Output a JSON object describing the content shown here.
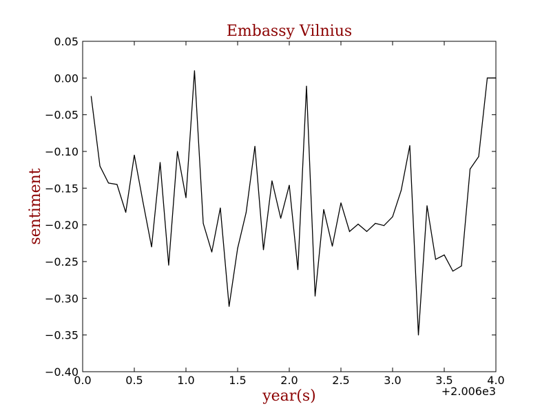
{
  "chart_data": {
    "type": "line",
    "title": "Embassy Vilnius",
    "xlabel": "year(s)",
    "ylabel": "sentiment",
    "x_offset_label": "+2.006e3",
    "xlim": [
      0.0,
      4.0
    ],
    "ylim": [
      -0.4,
      0.05
    ],
    "xticks": [
      "0.0",
      "0.5",
      "1.0",
      "1.5",
      "2.0",
      "2.5",
      "3.0",
      "3.5",
      "4.0"
    ],
    "yticks": [
      "0.05",
      "0.00",
      "−0.05",
      "−0.10",
      "−0.15",
      "−0.20",
      "−0.25",
      "−0.30",
      "−0.35",
      "−0.40"
    ],
    "grid": false,
    "legend": "none",
    "colors": {
      "label": "#8b0000",
      "line": "#000000",
      "axes": "#000000"
    },
    "series": [
      {
        "x": [
          0.083,
          0.167,
          0.25,
          0.333,
          0.417,
          0.5,
          0.583,
          0.667,
          0.75,
          0.833,
          0.917,
          1.0,
          1.083,
          1.167,
          1.25,
          1.333,
          1.417,
          1.5,
          1.583,
          1.667,
          1.75,
          1.833,
          1.917,
          2.0,
          2.083,
          2.167,
          2.25,
          2.333,
          2.417,
          2.5,
          2.583,
          2.667,
          2.75,
          2.833,
          2.917,
          3.0,
          3.083,
          3.167,
          3.25,
          3.333,
          3.417,
          3.5,
          3.583,
          3.667,
          3.75,
          3.833,
          3.917,
          4.0
        ],
        "y": [
          -0.025,
          -0.12,
          -0.143,
          -0.145,
          -0.183,
          -0.105,
          -0.168,
          -0.23,
          -0.115,
          -0.255,
          -0.1,
          -0.163,
          0.01,
          -0.198,
          -0.237,
          -0.177,
          -0.311,
          -0.232,
          -0.183,
          -0.093,
          -0.234,
          -0.14,
          -0.191,
          -0.146,
          -0.261,
          -0.011,
          -0.297,
          -0.179,
          -0.229,
          -0.17,
          -0.209,
          -0.199,
          -0.209,
          -0.198,
          -0.201,
          -0.189,
          -0.153,
          -0.092,
          -0.35,
          -0.174,
          -0.247,
          -0.241,
          -0.263,
          -0.256,
          -0.124,
          -0.107,
          0.0,
          0.0
        ]
      }
    ]
  }
}
